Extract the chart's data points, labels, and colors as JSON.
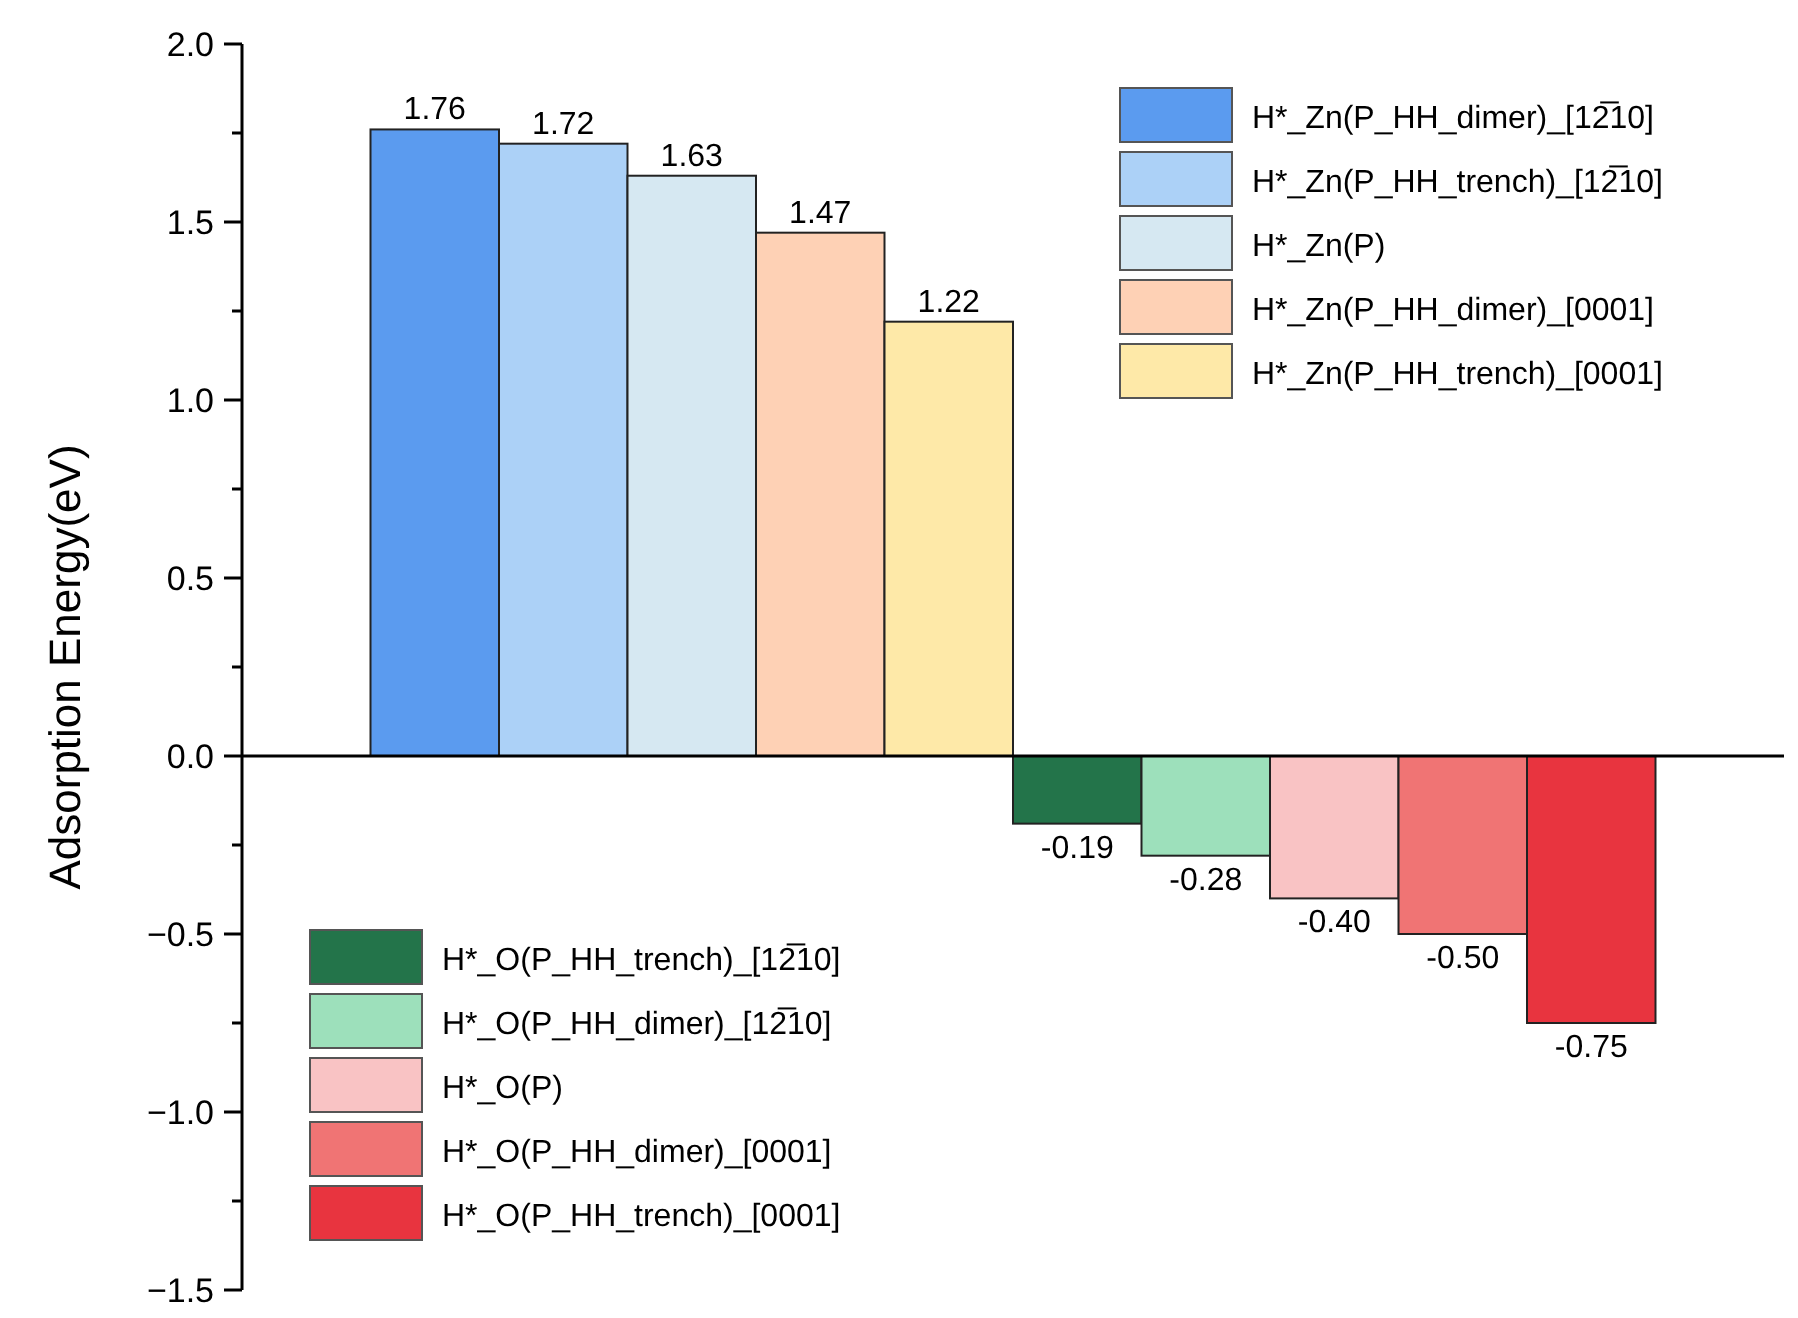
{
  "chart_data": {
    "type": "bar",
    "ylabel": "Adsorption Energy(eV)",
    "categories": [
      null,
      null,
      null,
      null,
      null,
      null,
      null,
      null,
      null,
      null,
      null,
      null
    ],
    "ylim": [
      -1.5,
      2.0
    ],
    "yticks": [
      {
        "value": -1.5,
        "label": "−1.5"
      },
      {
        "value": -1.25,
        "label": null
      },
      {
        "value": -1.0,
        "label": "−1.0"
      },
      {
        "value": -0.75,
        "label": null
      },
      {
        "value": -0.5,
        "label": "−0.5"
      },
      {
        "value": -0.25,
        "label": null
      },
      {
        "value": 0,
        "label": "0.0"
      },
      {
        "value": 0.25,
        "label": null
      },
      {
        "value": 0.5,
        "label": "0.5"
      },
      {
        "value": 0.75,
        "label": null
      },
      {
        "value": 1.0,
        "label": "1.0"
      },
      {
        "value": 1.25,
        "label": null
      },
      {
        "value": 1.5,
        "label": "1.5"
      },
      {
        "value": 1.75,
        "label": null
      },
      {
        "value": 2.0,
        "label": "2.0"
      }
    ],
    "legend": "top right",
    "stacked": true,
    "series": [
      {
        "name": "H*_Zn(P_HH_dimer)_[12̅10]",
        "color": "#5b9bef",
        "values": [
          null,
          1.76,
          null,
          null,
          null,
          null,
          null,
          null,
          null,
          null,
          null,
          null
        ],
        "value_labels": [
          null,
          "1.76",
          null,
          null,
          null,
          null,
          null,
          null,
          null,
          null,
          null,
          null
        ]
      },
      {
        "name": "H*_Zn(P_HH_trench)_[12̅10]",
        "color": "#acd1f7",
        "values": [
          null,
          null,
          1.72,
          null,
          null,
          null,
          null,
          null,
          null,
          null,
          null,
          null
        ],
        "value_labels": [
          null,
          null,
          "1.72",
          null,
          null,
          null,
          null,
          null,
          null,
          null,
          null,
          null
        ]
      },
      {
        "name": "H*_Zn(P)",
        "color": "#d6e8f2",
        "values": [
          null,
          null,
          null,
          1.63,
          null,
          null,
          null,
          null,
          null,
          null,
          null,
          null
        ],
        "value_labels": [
          null,
          null,
          null,
          "1.63",
          null,
          null,
          null,
          null,
          null,
          null,
          null,
          null
        ]
      },
      {
        "name": "H*_Zn(P_HH_dimer)_[0001]",
        "color": "#fed1b5",
        "values": [
          null,
          null,
          null,
          null,
          1.47,
          null,
          null,
          null,
          null,
          null,
          null,
          null
        ],
        "value_labels": [
          null,
          null,
          null,
          null,
          "1.47",
          null,
          null,
          null,
          null,
          null,
          null,
          null
        ]
      },
      {
        "name": "H*_Zn(P_HH_trench)_[0001]",
        "color": "#fee9a8",
        "values": [
          null,
          null,
          null,
          null,
          null,
          1.22,
          null,
          null,
          null,
          null,
          null,
          null
        ],
        "value_labels": [
          null,
          null,
          null,
          null,
          null,
          "1.22",
          null,
          null,
          null,
          null,
          null,
          null
        ]
      },
      {
        "name": "H*_O(P_HH_trench)_[12̅10]",
        "color": "#23744a",
        "values": [
          null,
          null,
          null,
          null,
          null,
          null,
          -0.19,
          null,
          null,
          null,
          null,
          null
        ],
        "value_labels": [
          null,
          null,
          null,
          null,
          null,
          null,
          "-0.19",
          null,
          null,
          null,
          null,
          null
        ]
      },
      {
        "name": "H*_O(P_HH_dimer)_[12̅10]",
        "color": "#9de0bb",
        "values": [
          null,
          null,
          null,
          null,
          null,
          null,
          null,
          -0.28,
          null,
          null,
          null,
          null
        ],
        "value_labels": [
          null,
          null,
          null,
          null,
          null,
          null,
          null,
          "-0.28",
          null,
          null,
          null,
          null
        ]
      },
      {
        "name": "H*_O(P)",
        "color": "#f9c3c4",
        "values": [
          null,
          null,
          null,
          null,
          null,
          null,
          null,
          null,
          -0.4,
          null,
          null,
          null
        ],
        "value_labels": [
          null,
          null,
          null,
          null,
          null,
          null,
          null,
          null,
          "-0.40",
          null,
          null,
          null
        ]
      },
      {
        "name": "H*_O(P_HH_dimer)_[0001]",
        "color": "#f07474",
        "values": [
          null,
          null,
          null,
          null,
          null,
          null,
          null,
          null,
          null,
          -0.5,
          null,
          null
        ],
        "value_labels": [
          null,
          null,
          null,
          null,
          null,
          null,
          null,
          null,
          null,
          "-0.50",
          null,
          null
        ]
      },
      {
        "name": "H*_O(P_HH_trench)_[0001]",
        "color": "#e8343f",
        "values": [
          null,
          null,
          null,
          null,
          null,
          null,
          null,
          null,
          null,
          null,
          -0.75,
          null
        ],
        "value_labels": [
          null,
          null,
          null,
          null,
          null,
          null,
          null,
          null,
          null,
          null,
          "-0.75",
          null
        ]
      }
    ]
  }
}
